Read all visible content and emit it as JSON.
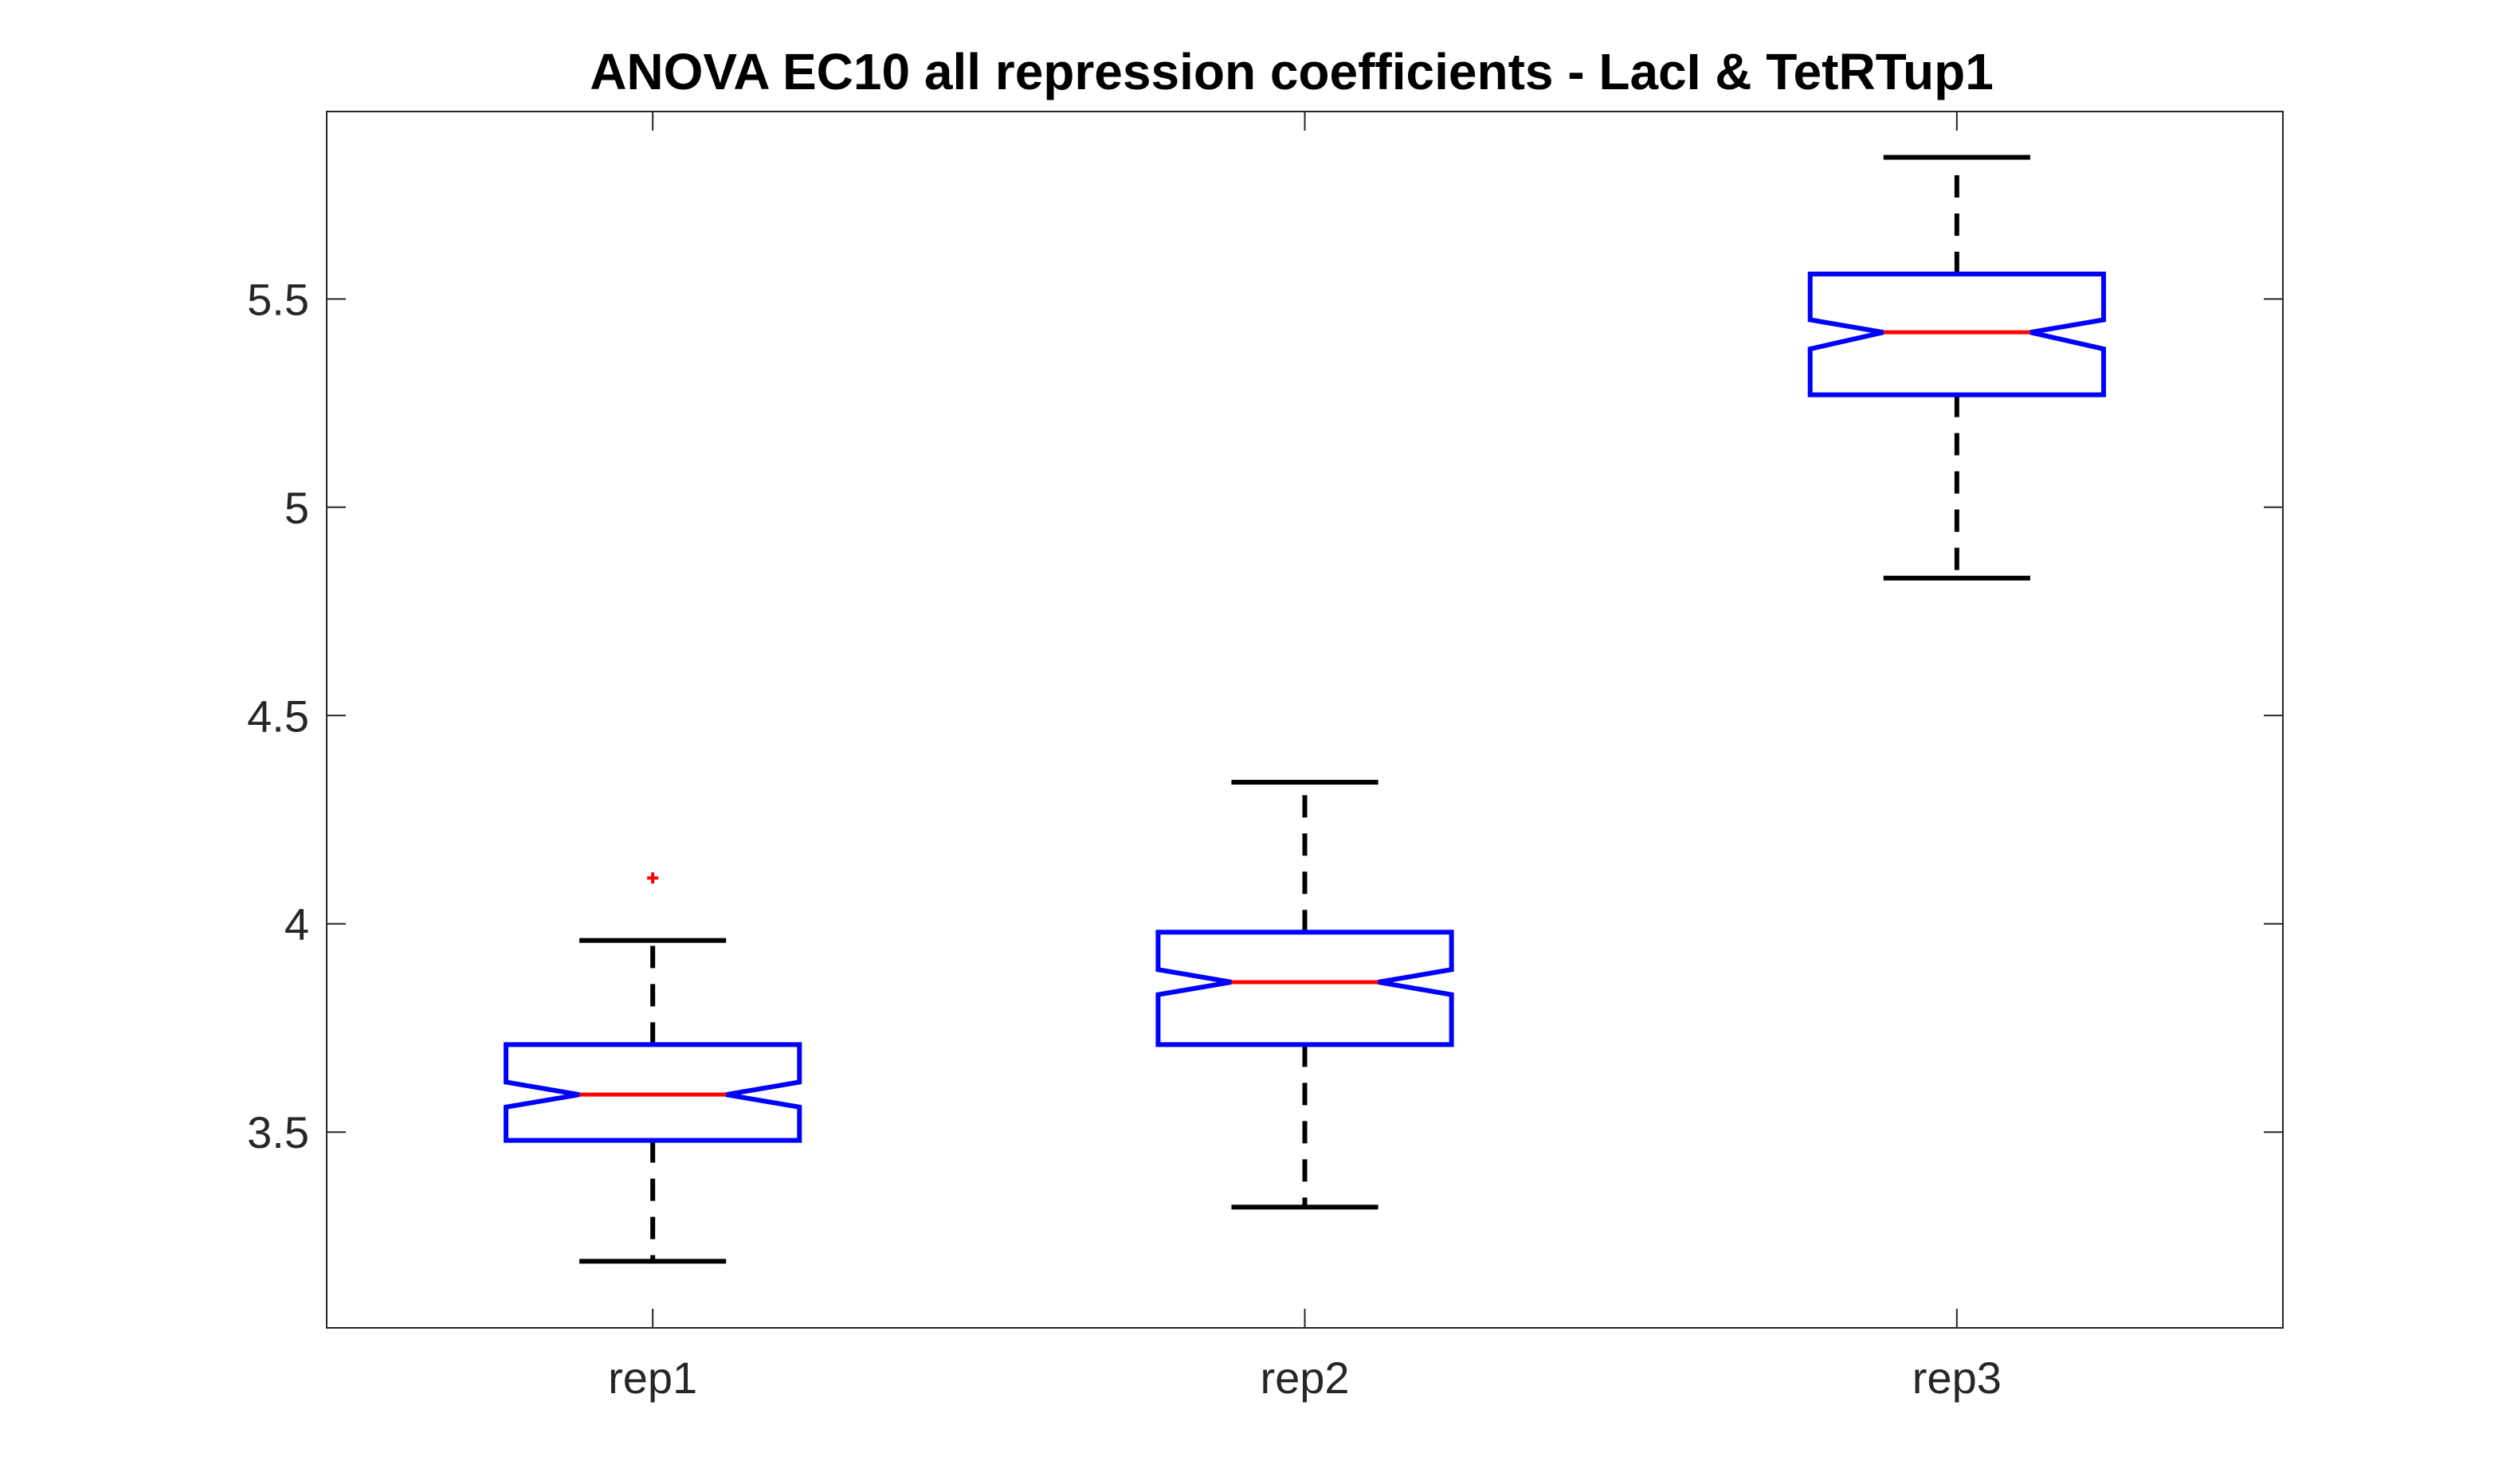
{
  "chart_data": {
    "type": "box",
    "title": "ANOVA  EC10 all repression coefficients - LacI & TetRTup1",
    "xlabel": "",
    "ylabel": "",
    "categories": [
      "rep1",
      "rep2",
      "rep3"
    ],
    "ylim": [
      3.03,
      5.95
    ],
    "yticks": [
      3.5,
      4,
      4.5,
      5,
      5.5
    ],
    "ytick_labels": [
      "3.5",
      "4",
      "4.5",
      "5",
      "5.5"
    ],
    "notched": true,
    "grid": false,
    "boxes": [
      {
        "name": "rep1",
        "whisker_low": 3.19,
        "q1": 3.48,
        "median": 3.59,
        "q3": 3.71,
        "whisker_high": 3.96,
        "notch_low": 3.56,
        "notch_high": 3.62,
        "outliers": [
          4.11
        ]
      },
      {
        "name": "rep2",
        "whisker_low": 3.32,
        "q1": 3.71,
        "median": 3.86,
        "q3": 3.98,
        "whisker_high": 4.34,
        "notch_low": 3.83,
        "notch_high": 3.89,
        "outliers": []
      },
      {
        "name": "rep3",
        "whisker_low": 4.83,
        "q1": 5.27,
        "median": 5.42,
        "q3": 5.56,
        "whisker_high": 5.84,
        "notch_low": 5.38,
        "notch_high": 5.45,
        "outliers": []
      }
    ],
    "colors": {
      "box": "#0000ff",
      "median": "#ff0000",
      "whisker": "#000000",
      "outlier": "#ff0000",
      "axis": "#262626"
    }
  }
}
